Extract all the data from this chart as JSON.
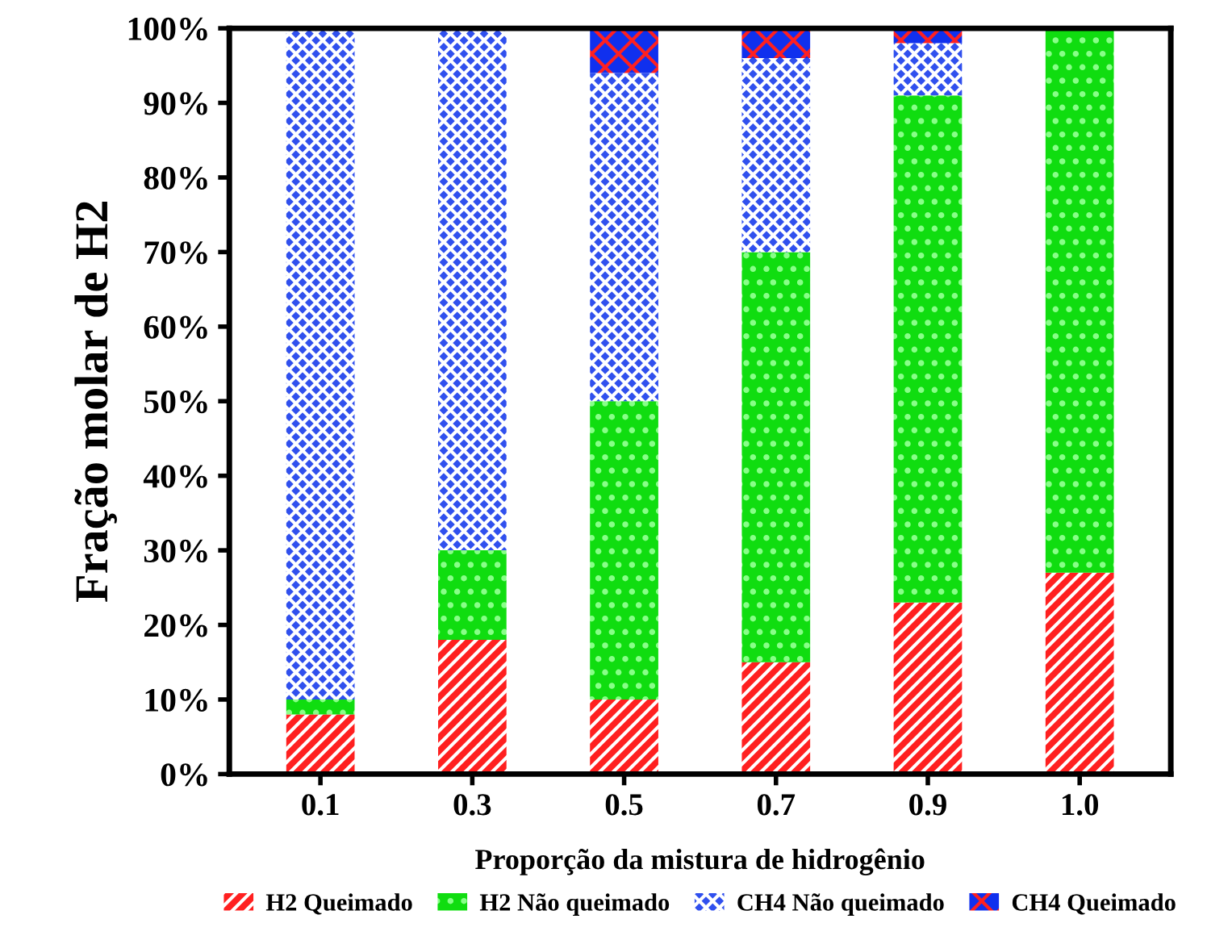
{
  "chart_data": {
    "type": "bar",
    "stacked": true,
    "xlabel": "Proporção da mistura de hidrogênio",
    "ylabel": "Fração molar de H2",
    "categories": [
      "0.1",
      "0.3",
      "0.5",
      "0.7",
      "0.9",
      "1.0"
    ],
    "series": [
      {
        "name": "H2 Queimado",
        "color": "#ff2020",
        "values": [
          8,
          18,
          10,
          15,
          23,
          27
        ]
      },
      {
        "name": "H2 Não queimado",
        "color": "#10dd10",
        "values": [
          2,
          12,
          40,
          55,
          68,
          73
        ]
      },
      {
        "name": "CH4 Não queimado",
        "color": "#3050ee",
        "values": [
          90,
          70,
          44,
          26,
          7,
          0
        ]
      },
      {
        "name": "CH4 Queimado",
        "color": "#1030ee",
        "values": [
          0,
          0,
          6,
          4,
          2,
          0
        ]
      }
    ],
    "ylim": [
      0,
      100
    ],
    "yticks": [
      {
        "value": 0,
        "label": "0%"
      },
      {
        "value": 10,
        "label": "10%"
      },
      {
        "value": 20,
        "label": "20%"
      },
      {
        "value": 30,
        "label": "30%"
      },
      {
        "value": 40,
        "label": "40%"
      },
      {
        "value": 50,
        "label": "50%"
      },
      {
        "value": 60,
        "label": "60%"
      },
      {
        "value": 70,
        "label": "70%"
      },
      {
        "value": 80,
        "label": "80%"
      },
      {
        "value": 90,
        "label": "90%"
      },
      {
        "value": 100,
        "label": "100%"
      }
    ],
    "grid": false,
    "legend": "bottom"
  }
}
